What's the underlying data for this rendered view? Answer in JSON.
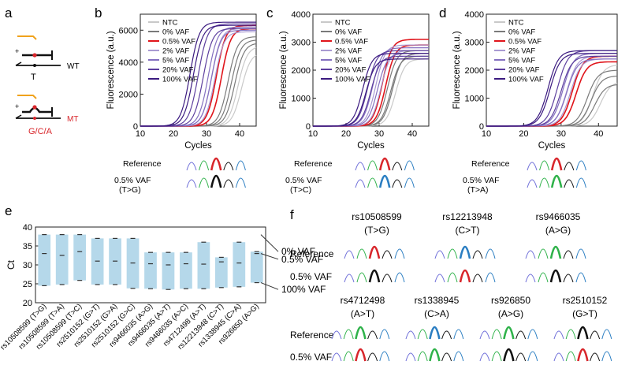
{
  "panel_labels": [
    "a",
    "b",
    "c",
    "d",
    "e",
    "f"
  ],
  "schematic": {
    "wt_label": "WT",
    "wt_base": "T",
    "mt_label": "MT",
    "mt_bases": "G/C/A",
    "plus_sign": "+"
  },
  "colors": {
    "ntc": "#c9c9c9",
    "vaf0": "#7a7a7a",
    "vaf05": "#e0151b",
    "vaf2": "#a99ad2",
    "vaf5": "#8470c0",
    "vaf20": "#5d3f9e",
    "vaf100": "#3b1a80",
    "primer": "#f0a21c",
    "mt": "#d8262b",
    "bar": "#b5d8ea"
  },
  "seq_labels": {
    "reference": "Reference",
    "vaf_tg": "0.5% VAF\n(T>G)",
    "vaf_tc": "0.5% VAF\n(T>C)",
    "vaf_ta": "0.5% VAF\n(T>A)"
  },
  "chart_data": [
    {
      "panel": "b",
      "type": "line",
      "xlabel": "Cycles",
      "ylabel": "Fluorescence (a.u.)",
      "xlim": [
        10,
        45
      ],
      "ylim": [
        0,
        7000
      ],
      "xticks": [
        10,
        20,
        30,
        40
      ],
      "yticks": [
        0,
        2000,
        4000,
        6000
      ],
      "legend": [
        "NTC",
        "0% VAF",
        "0.5% VAF",
        "2% VAF",
        "5% VAF",
        "20% VAF",
        "100% VAF"
      ],
      "series": [
        {
          "name": "NTC",
          "ct": [
            39.5,
            40.5
          ],
          "max": [
            5000,
            4600
          ]
        },
        {
          "name": "0% VAF",
          "ct": [
            36.5,
            37.5,
            38.5
          ],
          "max": [
            5600,
            5400,
            5200
          ]
        },
        {
          "name": "0.5% VAF",
          "ct": [
            33.0,
            34.5
          ],
          "max": [
            6300,
            6100
          ]
        },
        {
          "name": "2% VAF",
          "ct": [
            31.5,
            32.5
          ],
          "max": [
            6100,
            5900
          ]
        },
        {
          "name": "5% VAF",
          "ct": [
            30.5,
            31.5
          ],
          "max": [
            6200,
            6000
          ]
        },
        {
          "name": "20% VAF",
          "ct": [
            27.5,
            29.0
          ],
          "max": [
            6400,
            6100
          ]
        },
        {
          "name": "100% VAF",
          "ct": [
            25.0,
            26.0
          ],
          "max": [
            6500,
            6300
          ]
        }
      ]
    },
    {
      "panel": "c",
      "type": "line",
      "xlabel": "Cycles",
      "ylabel": "Fluorescence (a.u.)",
      "xlim": [
        10,
        45
      ],
      "ylim": [
        0,
        4000
      ],
      "xticks": [
        10,
        20,
        30,
        40
      ],
      "yticks": [
        0,
        1000,
        2000,
        3000,
        4000
      ],
      "legend": [
        "NTC",
        "0% VAF",
        "0.5% VAF",
        "2% VAF",
        "5% VAF",
        "20% VAF",
        "100% VAF"
      ],
      "series": [
        {
          "name": "NTC",
          "ct": [
            34.0,
            35.0
          ],
          "max": [
            2600,
            2400
          ]
        },
        {
          "name": "0% VAF",
          "ct": [
            32.5,
            33.5,
            34.0
          ],
          "max": [
            2700,
            2500,
            2600
          ]
        },
        {
          "name": "0.5% VAF",
          "ct": [
            31.0,
            32.0
          ],
          "max": [
            3100,
            2900
          ]
        },
        {
          "name": "2% VAF",
          "ct": [
            29.0,
            30.5
          ],
          "max": [
            2900,
            2700
          ]
        },
        {
          "name": "5% VAF",
          "ct": [
            28.0,
            29.5
          ],
          "max": [
            2800,
            2600
          ]
        },
        {
          "name": "20% VAF",
          "ct": [
            26.5,
            27.5
          ],
          "max": [
            2700,
            2500
          ]
        },
        {
          "name": "100% VAF",
          "ct": [
            25.0,
            26.0
          ],
          "max": [
            2600,
            2400
          ]
        }
      ]
    },
    {
      "panel": "d",
      "type": "line",
      "xlabel": "Cycles",
      "ylabel": "Fluorescence (a.u.)",
      "xlim": [
        10,
        45
      ],
      "ylim": [
        0,
        4000
      ],
      "xticks": [
        10,
        20,
        30,
        40
      ],
      "yticks": [
        0,
        1000,
        2000,
        3000,
        4000
      ],
      "legend": [
        "NTC",
        "0% VAF",
        "0.5% VAF",
        "2% VAF",
        "5% VAF",
        "20% VAF",
        "100% VAF"
      ],
      "series": [
        {
          "name": "NTC",
          "ct": [
            38.5,
            40.5
          ],
          "max": [
            2200,
            1600
          ]
        },
        {
          "name": "0% VAF",
          "ct": [
            37.0,
            38.0,
            39.0
          ],
          "max": [
            2000,
            1800,
            1500
          ]
        },
        {
          "name": "0.5% VAF",
          "ct": [
            33.0,
            34.0
          ],
          "max": [
            2500,
            2300
          ]
        },
        {
          "name": "2% VAF",
          "ct": [
            31.5,
            32.5
          ],
          "max": [
            2500,
            2400
          ]
        },
        {
          "name": "5% VAF",
          "ct": [
            30.5,
            31.5
          ],
          "max": [
            2600,
            2400
          ]
        },
        {
          "name": "20% VAF",
          "ct": [
            29.0,
            30.0
          ],
          "max": [
            2700,
            2500
          ]
        },
        {
          "name": "100% VAF",
          "ct": [
            26.5,
            27.0
          ],
          "max": [
            2700,
            2600
          ]
        }
      ]
    },
    {
      "panel": "e",
      "type": "bar",
      "ylabel": "Ct",
      "ylim": [
        20,
        40
      ],
      "yticks": [
        20,
        25,
        30,
        35,
        40
      ],
      "categories": [
        "rs10508599 (T>G)",
        "rs10508599 (T>A)",
        "rs10508599 (T>C)",
        "rs2510152 (G>T)",
        "rs2510152 (G>A)",
        "rs2510152 (G>C)",
        "rs9466035 (A>G)",
        "rs9466035 (A>T)",
        "rs9466035 (A>C)",
        "rs4712498 (A>T)",
        "rs12213948 (C>T)",
        "rs1338945 (C>A)",
        "rs926850 (A>G)"
      ],
      "top": [
        38,
        38,
        38,
        37,
        37,
        37,
        33.3,
        33.3,
        33.3,
        36,
        32,
        36,
        33.5
      ],
      "bottom": [
        24.5,
        24.8,
        25.9,
        24.8,
        24.8,
        23.8,
        23.7,
        23.5,
        23.7,
        23.7,
        24.0,
        24.2,
        25.3
      ],
      "mid": [
        33,
        32.5,
        33.5,
        31,
        31,
        30.5,
        30.3,
        30.0,
        30.3,
        30.2,
        30.8,
        30.5,
        33
      ],
      "annotations": [
        "0% VAF",
        "0.5% VAF",
        "100% VAF"
      ]
    }
  ],
  "panel_f": {
    "top_snps": [
      {
        "id": "rs10508599",
        "change": "(T>G)",
        "ref_color": "#d8262b",
        "mut_color": "#111111"
      },
      {
        "id": "rs12213948",
        "change": "(C>T)",
        "ref_color": "#2b7ec2",
        "mut_color": "#d8262b"
      },
      {
        "id": "rs9466035",
        "change": "(A>G)",
        "ref_color": "#2fb24a",
        "mut_color": "#111111"
      }
    ],
    "bottom_snps": [
      {
        "id": "rs4712498",
        "change": "(A>T)",
        "ref_color": "#2fb24a",
        "mut_color": "#d8262b"
      },
      {
        "id": "rs1338945",
        "change": "(C>A)",
        "ref_color": "#2b7ec2",
        "mut_color": "#2fb24a"
      },
      {
        "id": "rs926850",
        "change": "(A>G)",
        "ref_color": "#2fb24a",
        "mut_color": "#111111"
      },
      {
        "id": "rs2510152",
        "change": "(G>T)",
        "ref_color": "#111111",
        "mut_color": "#d8262b"
      }
    ],
    "reference_label": "Reference",
    "vaf_label": "0.5% VAF"
  }
}
